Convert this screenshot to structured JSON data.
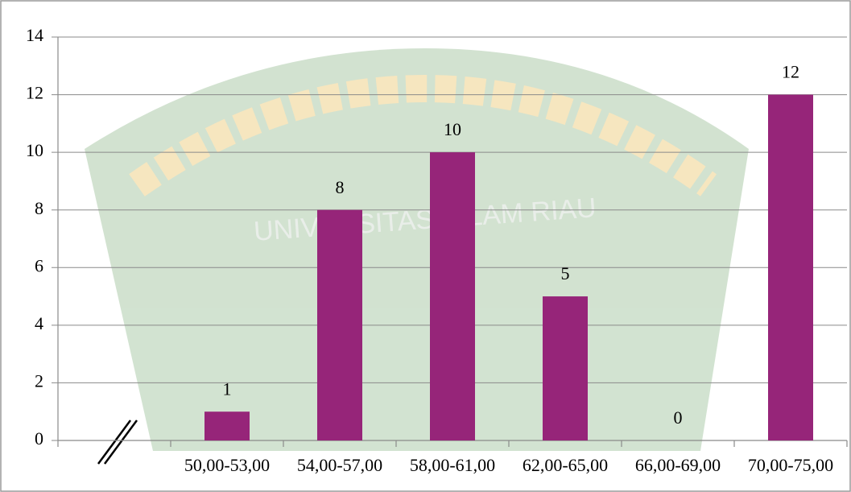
{
  "chart_data": {
    "type": "bar",
    "watermark": "UNIVERSITAS ISLAM RIAU",
    "categories": [
      null,
      "50,00-53,00",
      "54,00-57,00",
      "58,00-61,00",
      "62,00-65,00",
      "66,00-69,00",
      "70,00-75,00"
    ],
    "values": [
      null,
      1,
      8,
      10,
      5,
      0,
      12
    ],
    "color": "#962579",
    "ylim": [
      0,
      14
    ],
    "yticks": [
      0,
      2,
      4,
      6,
      8,
      10,
      12,
      14
    ],
    "grid": true
  }
}
